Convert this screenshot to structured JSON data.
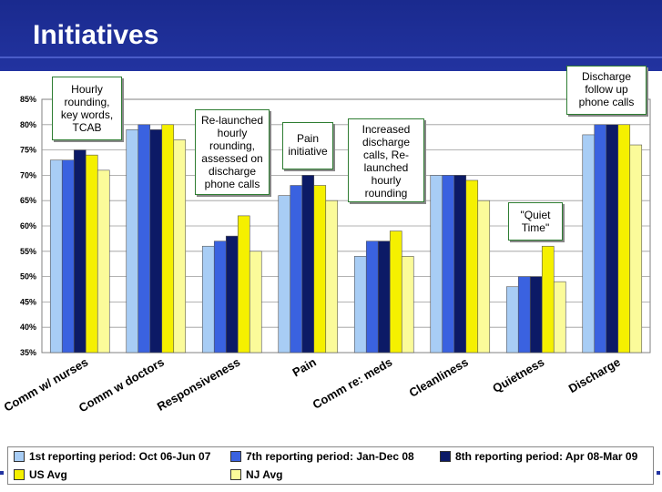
{
  "slide": {
    "title": "Initiatives"
  },
  "chart_data": {
    "type": "bar",
    "categories": [
      "Comm w/ nurses",
      "Comm w doctors",
      "Responsiveness",
      "Pain",
      "Comm re: meds",
      "Cleanliness",
      "Quietness",
      "Discharge"
    ],
    "series": [
      {
        "name": "1st reporting period: Oct 06-Jun 07",
        "color": "#a8cdf5",
        "values": [
          73,
          79,
          56,
          66,
          54,
          70,
          48,
          78
        ]
      },
      {
        "name": "7th reporting period: Jan-Dec 08",
        "color": "#3a62e0",
        "values": [
          73,
          80,
          57,
          68,
          57,
          70,
          50,
          80
        ]
      },
      {
        "name": "8th reporting period: Apr 08-Mar 09",
        "color": "#0c1a66",
        "values": [
          75,
          79,
          58,
          70,
          57,
          70,
          50,
          80
        ]
      },
      {
        "name": "US Avg",
        "color": "#f5f000",
        "values": [
          74,
          80,
          62,
          68,
          59,
          69,
          56,
          80
        ]
      },
      {
        "name": "NJ Avg",
        "color": "#fbfb9a",
        "values": [
          71,
          77,
          55,
          65,
          54,
          65,
          49,
          76
        ]
      }
    ],
    "y_tick_labels": [
      "35%",
      "40%",
      "45%",
      "50%",
      "55%",
      "60%",
      "65%",
      "70%",
      "75%",
      "80%",
      "85%"
    ],
    "ylim": [
      35,
      85
    ],
    "title": "",
    "xlabel": "",
    "ylabel": "",
    "grid": true,
    "legend_position": "bottom"
  },
  "callouts": {
    "hourly": "Hourly rounding, key words, TCAB",
    "relaunched": "Re-launched hourly rounding, assessed on discharge phone calls",
    "pain": "Pain initiative",
    "increased": "Increased discharge calls, Re-launched hourly rounding",
    "quiet": "\"Quiet Time\"",
    "discharge": "Discharge follow up phone calls"
  }
}
